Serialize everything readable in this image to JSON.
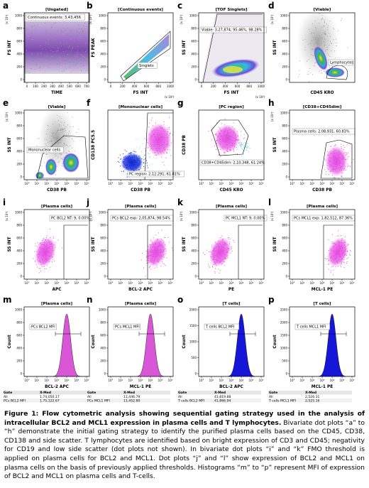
{
  "colors": {
    "magenta": "#e44be2",
    "magenta_dark": "#b81eb3",
    "blue": "#1a2fd4",
    "cyan": "#2fe0e0",
    "green": "#3fb24a",
    "yellow": "#f3e23a",
    "purple_noise": "#9b7ab8",
    "grey_dot": "#8a8a8a",
    "hist_fill_pink": "#d957d6",
    "hist_fill_blue": "#1616d8"
  },
  "panels": [
    {
      "letter": "a",
      "title": "[Ungated]",
      "xlabel": "TIME",
      "ylabel": "FS INT",
      "yexp": "(x 10³)",
      "annotation": "Continuous events: 3,43,456"
    },
    {
      "letter": "b",
      "title": "[Continuous events]",
      "xlabel": "FS INT",
      "ylabel": "FS PEAK",
      "yexp": "(x 10³)",
      "xexp": "(x 10³)",
      "annotation": "Singlets"
    },
    {
      "letter": "c",
      "title": "[TOF Singlets]",
      "xlabel": "FS INT",
      "ylabel": "SS INT",
      "yexp": "(x 10³)",
      "xexp": "(x 10³)",
      "annotation": "Viable: 3,27,874, 95.46%, 98.28%"
    },
    {
      "letter": "d",
      "title": "[Viable]",
      "xlabel": "CD45 KRO",
      "ylabel": "SS INT",
      "yexp": "(x 10³)",
      "annotation": "Lymphocytes"
    },
    {
      "letter": "e",
      "title": "[Viable]",
      "xlabel": "CD38 PB",
      "ylabel": "SS INT",
      "yexp": "(x 10³)",
      "annotation": "Mononuclear cells"
    },
    {
      "letter": "f",
      "title": "[Mononuclear cells]",
      "xlabel": "CD38 PB",
      "ylabel": "CD138 PC5.5",
      "annotation": "PC region: 2,12,291, 61.81%"
    },
    {
      "letter": "g",
      "title": "[PC region]",
      "xlabel": "CD45 KRO",
      "ylabel": "CD38 PB",
      "annotation": "CD38+CD45dim: 2,10,348, 61.24%"
    },
    {
      "letter": "h",
      "title": "[CD38+CD45dim]",
      "xlabel": "CD38 PB",
      "ylabel": "SS INT",
      "yexp": "(x 10³)",
      "annotation": "Plasma cells: 2,08,931, 60.83%"
    },
    {
      "letter": "i",
      "title": "[Plasma cells]",
      "xlabel": "APC",
      "ylabel": "SS INT",
      "yexp": "(x 10³)",
      "annotation": "PC BCL2 NT: 9, 0.00%"
    },
    {
      "letter": "j",
      "title": "[Plasma cells]",
      "xlabel": "BCL-2 APC",
      "ylabel": "SS INT",
      "yexp": "(x 10³)",
      "annotation": "PCs BCL2 exp: 2,05,874, 98.54%"
    },
    {
      "letter": "k",
      "title": "[Plasma cells]",
      "xlabel": "PE",
      "ylabel": "SS INT",
      "yexp": "(x 10³)",
      "annotation": "PC MCL1 NT: 9, 0.00%"
    },
    {
      "letter": "l",
      "title": "[Plasma cells]",
      "xlabel": "MCL-1 PE",
      "ylabel": "SS INT",
      "yexp": "(x 10³)",
      "annotation": "PCs MCL1 exp: 1,82,512, 87.36%"
    },
    {
      "letter": "m",
      "title": "[Plasma cells]",
      "xlabel": "BCL-2 APC",
      "ylabel": "Count",
      "annotation": "PCs BCL2 MFI"
    },
    {
      "letter": "n",
      "title": "[Plasma cells]",
      "xlabel": "MCL-1 PE",
      "ylabel": "Count",
      "annotation": "PCs MCL1 MFI"
    },
    {
      "letter": "o",
      "title": "[T cells]",
      "xlabel": "BCL-2 APC",
      "ylabel": "Count",
      "annotation": "T cells BCL2 MFI"
    },
    {
      "letter": "p",
      "title": "[T cells]",
      "xlabel": "MCL-1 PE",
      "ylabel": "Count",
      "annotation": "T cells MCL1 MFI"
    }
  ],
  "tick_labels": {
    "a_y": [
      "1000",
      "800",
      "600",
      "400",
      "200",
      "0"
    ],
    "a_x": [
      "0",
      "100",
      "200",
      "300",
      "400",
      "500",
      "600",
      "700"
    ],
    "bc_y": [
      "1000",
      "800",
      "600",
      "400",
      "200",
      "0"
    ],
    "bc_x": [
      "0",
      "200",
      "400",
      "600",
      "800",
      "1000"
    ],
    "log_x": [
      "10°",
      "10¹",
      "10²",
      "10³",
      "10⁴",
      "10⁵",
      "10⁶"
    ],
    "count_m": [
      "1000",
      "800",
      "600",
      "400",
      "200",
      "0"
    ],
    "count_n": [
      "1000",
      "800",
      "600",
      "400",
      "200",
      "0"
    ],
    "count_o": [
      "2000",
      "1500",
      "1000",
      "500",
      "0"
    ],
    "count_p": [
      "2500",
      "2000",
      "1500",
      "1000",
      "500",
      "0"
    ]
  },
  "stats_tables": [
    {
      "gate_h": "Gate",
      "xmed_h": "X-Med",
      "rows": [
        [
          "All",
          "1,74,050.17"
        ],
        [
          "PCs BCL2 MFI",
          "1,75,122.67"
        ]
      ]
    },
    {
      "gate_h": "Gate",
      "xmed_h": "X-Med",
      "rows": [
        [
          "All",
          "11,446.79"
        ],
        [
          "PCs MCL1 MFI",
          "11,452.80"
        ]
      ]
    },
    {
      "gate_h": "Gate",
      "xmed_h": "X-Med",
      "rows": [
        [
          "All",
          "41,819.88"
        ],
        [
          "T cells BCL2 MFI",
          "41,866.94"
        ]
      ]
    },
    {
      "gate_h": "Gate",
      "xmed_h": "X-Med",
      "rows": [
        [
          "All",
          "2,526.31"
        ],
        [
          "T cells MCL1 MFI",
          "2,525.16"
        ]
      ]
    }
  ],
  "caption": {
    "bold": "Figure 1: Flow cytometric analysis showing sequential gating strategy used in the analysis of intracellular BCL2 and MCL1 expression in plasma cells and T lymphocytes.",
    "body": " Bivariate dot plots “a” to “h” demonstrate the initial gating strategy to identify the purified plasma cells based on the CD45, CD38, CD138 and side scatter. T lymphocytes are identified based on bright expression of CD3 and CD45; negativity for CD19 and low side scatter (dot plots not shown). In bivariate dot plots “i” and “k” FMO threshold is applied on plasma cells for BCL2 and MCL1. Dot plots “j” and “l” show expression of BCL2 and MCL1 on plasma cells on the basis of previously applied thresholds. Histograms “m” to “p” represent MFI of expression of BCL2 and MCL1 on plasma cells and T-cells."
  }
}
